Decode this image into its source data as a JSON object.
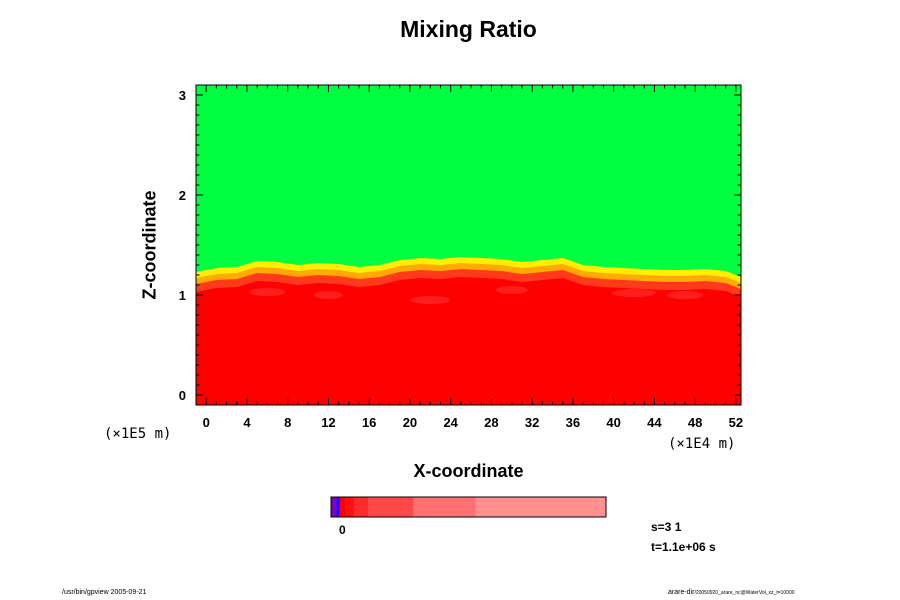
{
  "chart_data": {
    "type": "heatmap",
    "title": "Mixing Ratio",
    "xlabel": "X-coordinate",
    "ylabel": "Z-coordinate",
    "x_scale_label": "(×1E4 m)",
    "y_scale_label": "(×1E5 m)",
    "xlim": [
      -1,
      52.5
    ],
    "ylim": [
      -0.1,
      3.1
    ],
    "xticks": [
      "0",
      "4",
      "8",
      "12",
      "16",
      "20",
      "24",
      "28",
      "32",
      "36",
      "40",
      "44",
      "48",
      "52"
    ],
    "yticks": [
      "0",
      "1",
      "2",
      "3"
    ],
    "x_tick_values": [
      0,
      4,
      8,
      12,
      16,
      20,
      24,
      28,
      32,
      36,
      40,
      44,
      48,
      52
    ],
    "y_tick_values": [
      0,
      1,
      2,
      3
    ],
    "colors": {
      "upper_layer": "#00ff40",
      "lower_layer": "#ff0000",
      "interface_yellow": "#ffee00",
      "interface_orange": "#ffaa00",
      "lower_light": "#ff3a1a"
    },
    "interface_profile": {
      "x": [
        -1,
        1,
        3,
        5,
        7,
        9,
        11,
        13,
        15,
        17,
        19,
        21,
        23,
        25,
        27,
        29,
        31,
        33,
        35,
        37,
        39,
        41,
        43,
        45,
        47,
        49,
        51,
        52.5
      ],
      "z": [
        1.23,
        1.27,
        1.28,
        1.34,
        1.33,
        1.3,
        1.32,
        1.31,
        1.28,
        1.3,
        1.35,
        1.37,
        1.36,
        1.38,
        1.37,
        1.36,
        1.33,
        1.35,
        1.37,
        1.3,
        1.28,
        1.27,
        1.26,
        1.25,
        1.25,
        1.26,
        1.24,
        1.18
      ]
    },
    "colorbar": {
      "label": "0",
      "segments": [
        "#7a00c8",
        "#2000ff",
        "#ff0000",
        "#ff1010",
        "#ff2a2a",
        "#ff4848",
        "#ff7070",
        "#ff9090"
      ],
      "weights": [
        1,
        0.5,
        1,
        1.5,
        2.5,
        8,
        11,
        23
      ]
    },
    "grid": false,
    "legend": "none"
  },
  "annotations": {
    "s_value": "s=3 1",
    "t_value": "t=1.1e+06 s",
    "footer_left": "/usr/bin/gpview 2005-09-21",
    "footer_right_main": "arare-dir",
    "footer_right_small": "/20050920_arare_nc@WaterVol_xz_t=10000"
  }
}
